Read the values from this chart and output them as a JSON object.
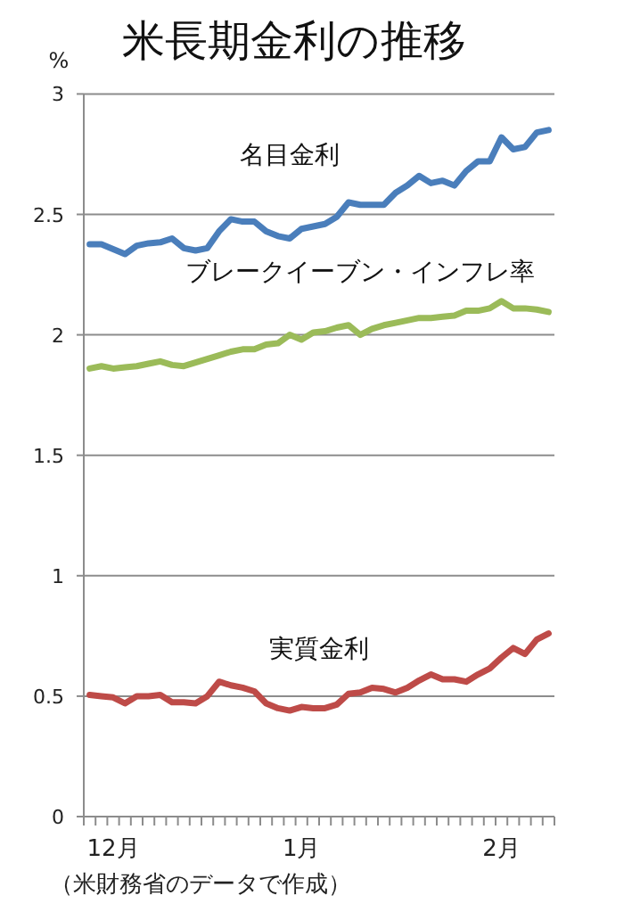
{
  "chart_data": {
    "type": "line",
    "title": "米長期金利の推移",
    "ylabel": "%",
    "annotations": [
      "（米財務省のデータで作成）"
    ],
    "categories": [
      null,
      null,
      "12月",
      null,
      null,
      null,
      null,
      null,
      null,
      null,
      null,
      null,
      null,
      null,
      null,
      null,
      null,
      null,
      "1月",
      null,
      null,
      null,
      null,
      null,
      null,
      null,
      null,
      null,
      null,
      null,
      null,
      null,
      null,
      null,
      null,
      "2月",
      null,
      null,
      null,
      null
    ],
    "series": [
      {
        "name": "名目金利",
        "color": "#4a7ebb",
        "values": [
          2.376,
          2.376,
          2.356,
          2.335,
          2.37,
          2.38,
          2.384,
          2.4,
          2.36,
          2.35,
          2.36,
          2.43,
          2.48,
          2.47,
          2.47,
          2.43,
          2.41,
          2.4,
          2.44,
          2.45,
          2.46,
          2.49,
          2.55,
          2.54,
          2.54,
          2.54,
          2.59,
          2.62,
          2.66,
          2.63,
          2.64,
          2.62,
          2.68,
          2.72,
          2.72,
          2.82,
          2.77,
          2.78,
          2.84,
          2.85
        ]
      },
      {
        "name": "ブレークイーブン・インフレ率",
        "color": "#9bbb59",
        "values": [
          1.86,
          1.87,
          1.86,
          1.865,
          1.87,
          1.88,
          1.89,
          1.875,
          1.87,
          1.885,
          1.9,
          1.915,
          1.93,
          1.94,
          1.94,
          1.96,
          1.965,
          2.0,
          1.98,
          2.01,
          2.015,
          2.03,
          2.04,
          2.0,
          2.025,
          2.04,
          2.05,
          2.06,
          2.07,
          2.07,
          2.075,
          2.08,
          2.1,
          2.1,
          2.11,
          2.14,
          2.11,
          2.11,
          2.105,
          2.095
        ]
      },
      {
        "name": "実質金利",
        "color": "#be4b48",
        "values": [
          0.505,
          0.5,
          0.495,
          0.47,
          0.5,
          0.5,
          0.505,
          0.475,
          0.475,
          0.47,
          0.5,
          0.56,
          0.545,
          0.535,
          0.52,
          0.47,
          0.45,
          0.44,
          0.455,
          0.45,
          0.45,
          0.465,
          0.51,
          0.515,
          0.535,
          0.53,
          0.515,
          0.535,
          0.565,
          0.59,
          0.57,
          0.57,
          0.56,
          0.59,
          0.615,
          0.66,
          0.7,
          0.675,
          0.735,
          0.76
        ]
      }
    ],
    "ylim": [
      0,
      3
    ],
    "yticks": [
      0,
      0.5,
      1,
      1.5,
      2,
      2.5,
      3
    ],
    "grid": "y",
    "marker": "none",
    "line_style": "solid"
  }
}
